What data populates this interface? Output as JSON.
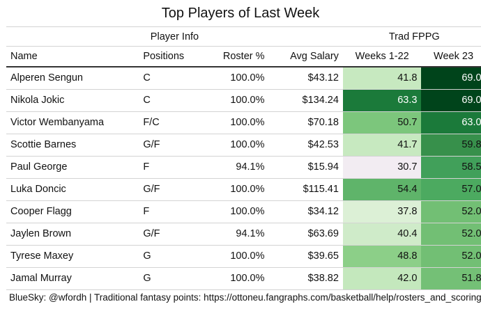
{
  "title": "Top Players of Last Week",
  "groups": {
    "player_info": "Player Info",
    "trad_fppg": "Trad FPPG"
  },
  "columns": [
    "Name",
    "Positions",
    "Roster %",
    "Avg Salary",
    "Weeks 1-22",
    "Week 23"
  ],
  "rows": [
    {
      "name": "Alperen Sengun",
      "pos": "C",
      "roster": "100.0%",
      "salary": "$43.12",
      "w1_22": "41.8",
      "w23": "69.0",
      "c1": "#c7e9c0",
      "c2": "#00441b",
      "t1": "#111111",
      "t2": "#ffffff"
    },
    {
      "name": "Nikola Jokic",
      "pos": "C",
      "roster": "100.0%",
      "salary": "$134.24",
      "w1_22": "63.3",
      "w23": "69.0",
      "c1": "#1b7a3a",
      "c2": "#00441b",
      "t1": "#ffffff",
      "t2": "#ffffff"
    },
    {
      "name": "Victor Wembanyama",
      "pos": "F/C",
      "roster": "100.0%",
      "salary": "$70.18",
      "w1_22": "50.7",
      "w23": "63.0",
      "c1": "#7cc67c",
      "c2": "#1b7a3a",
      "t1": "#111111",
      "t2": "#ffffff"
    },
    {
      "name": "Scottie Barnes",
      "pos": "G/F",
      "roster": "100.0%",
      "salary": "$42.53",
      "w1_22": "41.7",
      "w23": "59.8",
      "c1": "#c7e9c0",
      "c2": "#37904b",
      "t1": "#111111",
      "t2": "#111111"
    },
    {
      "name": "Paul George",
      "pos": "F",
      "roster": "94.1%",
      "salary": "$15.94",
      "w1_22": "30.7",
      "w23": "58.5",
      "c1": "#f2ecf2",
      "c2": "#41a05a",
      "t1": "#111111",
      "t2": "#111111"
    },
    {
      "name": "Luka Doncic",
      "pos": "G/F",
      "roster": "100.0%",
      "salary": "$115.41",
      "w1_22": "54.4",
      "w23": "57.0",
      "c1": "#5fb46a",
      "c2": "#4caa60",
      "t1": "#111111",
      "t2": "#111111"
    },
    {
      "name": "Cooper Flagg",
      "pos": "F",
      "roster": "100.0%",
      "salary": "$34.12",
      "w1_22": "37.8",
      "w23": "52.0",
      "c1": "#dcf0d6",
      "c2": "#72bf74",
      "t1": "#111111",
      "t2": "#111111"
    },
    {
      "name": "Jaylen Brown",
      "pos": "G/F",
      "roster": "94.1%",
      "salary": "$63.69",
      "w1_22": "40.4",
      "w23": "52.0",
      "c1": "#cfebc9",
      "c2": "#72bf74",
      "t1": "#111111",
      "t2": "#111111"
    },
    {
      "name": "Tyrese Maxey",
      "pos": "G",
      "roster": "100.0%",
      "salary": "$39.65",
      "w1_22": "48.8",
      "w23": "52.0",
      "c1": "#8ccf88",
      "c2": "#72bf74",
      "t1": "#111111",
      "t2": "#111111"
    },
    {
      "name": "Jamal Murray",
      "pos": "G",
      "roster": "100.0%",
      "salary": "$38.82",
      "w1_22": "42.0",
      "w23": "51.8",
      "c1": "#c4e8bd",
      "c2": "#74c076",
      "t1": "#111111",
      "t2": "#111111"
    }
  ],
  "footer": "BlueSky: @wfordh | Traditional fantasy points: https://ottoneu.fangraphs.com/basketball/help/rosters_and_scoring"
}
